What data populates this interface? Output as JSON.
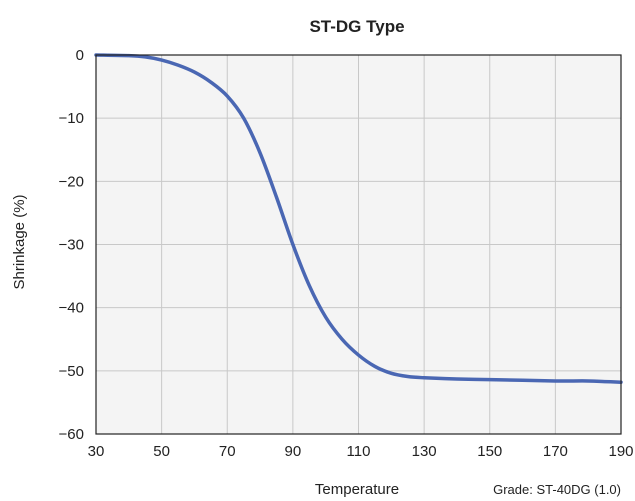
{
  "chart_data": {
    "type": "line",
    "title": "ST-DG Type",
    "xlabel": "Temperature",
    "ylabel": "Shrinkage (%)",
    "annotation": "Grade: ST-40DG (1.0)",
    "xlim": [
      30,
      190
    ],
    "ylim": [
      -60,
      0
    ],
    "x_ticks": [
      30,
      50,
      70,
      90,
      110,
      130,
      150,
      170,
      190
    ],
    "y_ticks": [
      0,
      -10,
      -20,
      -30,
      -40,
      -50,
      -60
    ],
    "x_tick_labels": [
      "30",
      "50",
      "70",
      "90",
      "110",
      "130",
      "150",
      "170",
      "190"
    ],
    "y_tick_labels": [
      "0",
      "−10",
      "−20",
      "−30",
      "−40",
      "−50",
      "−60"
    ],
    "grid": true,
    "series": [
      {
        "color": "#4a67b3",
        "x": [
          30,
          40,
          45,
          50,
          55,
          60,
          65,
          70,
          75,
          80,
          85,
          90,
          95,
          100,
          105,
          110,
          115,
          120,
          125,
          130,
          140,
          150,
          160,
          170,
          180,
          185,
          190
        ],
        "y": [
          0,
          -0.1,
          -0.3,
          -0.8,
          -1.6,
          -2.7,
          -4.3,
          -6.5,
          -10,
          -15.5,
          -22.5,
          -30,
          -36.5,
          -41.5,
          -45,
          -47.5,
          -49.3,
          -50.4,
          -50.9,
          -51.1,
          -51.3,
          -51.4,
          -51.5,
          -51.6,
          -51.6,
          -51.7,
          -51.8
        ]
      }
    ]
  },
  "colors": {
    "plot_background": "#f4f4f4",
    "grid": "#c8c8c8",
    "axis": "#222222",
    "line": "#4a67b3"
  }
}
